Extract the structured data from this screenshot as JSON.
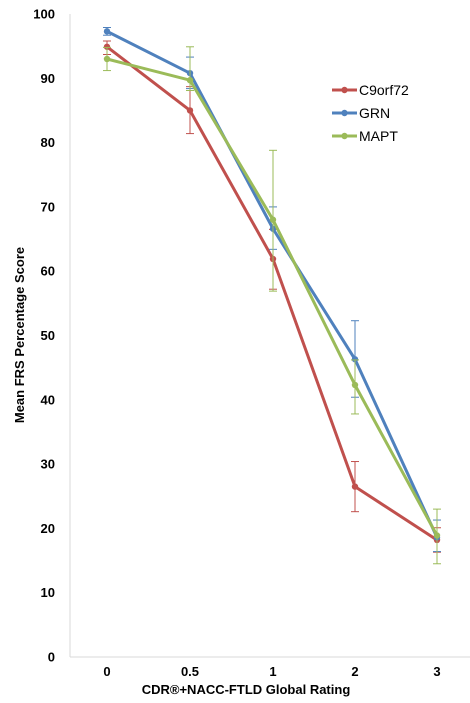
{
  "chart_data": {
    "type": "line",
    "title": "",
    "xlabel": "CDR®+NACC-FTLD Global Rating",
    "ylabel": "Mean FRS Percentage Score",
    "categories": [
      "0",
      "0.5",
      "1",
      "2",
      "3"
    ],
    "ylim": [
      0,
      100
    ],
    "yticks": [
      "0",
      "10",
      "20",
      "30",
      "40",
      "50",
      "60",
      "70",
      "80",
      "90",
      "100"
    ],
    "grid": false,
    "legend_position": "right",
    "series": [
      {
        "name": "C9orf72",
        "color": "#c0504d",
        "values": [
          94.9,
          85.0,
          61.9,
          26.5,
          18.2
        ],
        "err_low": [
          93.7,
          81.4,
          57.2,
          22.6,
          16.3
        ],
        "err_high": [
          95.8,
          88.7,
          66.5,
          30.4,
          20.1
        ]
      },
      {
        "name": "GRN",
        "color": "#4f81bd",
        "values": [
          97.3,
          90.8,
          66.6,
          46.3,
          18.6
        ],
        "err_low": [
          96.7,
          88.4,
          63.4,
          40.4,
          16.4
        ],
        "err_high": [
          97.9,
          93.3,
          70.0,
          52.3,
          21.3
        ]
      },
      {
        "name": "MAPT",
        "color": "#9bbb59",
        "values": [
          93.0,
          89.7,
          68.0,
          42.3,
          18.9
        ],
        "err_low": [
          91.2,
          88.1,
          56.9,
          37.8,
          14.5
        ],
        "err_high": [
          94.8,
          94.9,
          78.8,
          46.2,
          23.0
        ]
      }
    ]
  }
}
